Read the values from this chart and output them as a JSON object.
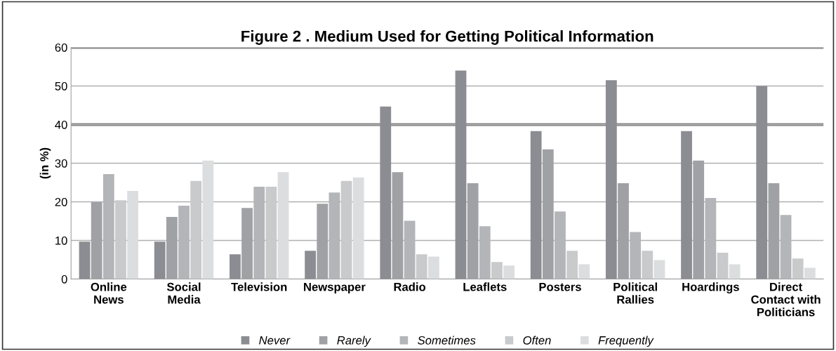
{
  "chart_data": {
    "type": "bar",
    "title": "Figure 2 . Medium Used for Getting Political Information",
    "ylabel": "(in %)",
    "categories": [
      "Online\nNews",
      "Social\nMedia",
      "Television",
      "Newspaper",
      "Radio",
      "Leaflets",
      "Posters",
      "Political\nRallies",
      "Hoardings",
      "Direct\nContact with\nPoliticians"
    ],
    "series": [
      {
        "name": "Never",
        "color": "#8c8d92",
        "values": [
          9.7,
          9.7,
          6.4,
          7.3,
          44.7,
          54.0,
          38.3,
          51.5,
          38.3,
          50.0
        ]
      },
      {
        "name": "Rarely",
        "color": "#a0a1a5",
        "values": [
          19.9,
          16.1,
          18.4,
          19.5,
          27.7,
          24.8,
          33.6,
          24.8,
          30.7,
          24.8
        ]
      },
      {
        "name": "Sometimes",
        "color": "#b4b5b9",
        "values": [
          27.2,
          19.0,
          23.9,
          22.4,
          15.1,
          13.7,
          17.5,
          12.2,
          21.0,
          16.6
        ]
      },
      {
        "name": "Often",
        "color": "#c9cacc",
        "values": [
          20.4,
          25.4,
          23.9,
          25.4,
          6.4,
          4.4,
          7.3,
          7.3,
          6.8,
          5.3
        ]
      },
      {
        "name": "Frequently",
        "color": "#dcdddf",
        "values": [
          22.8,
          30.7,
          27.7,
          26.3,
          5.8,
          3.5,
          3.8,
          4.9,
          3.8,
          2.9
        ]
      }
    ],
    "ylim": [
      0,
      60
    ],
    "yticks": [
      0,
      10,
      20,
      30,
      40,
      50,
      60
    ],
    "grid": "y",
    "legend": "bottom",
    "ref_lines": [
      {
        "axis": "y",
        "value": 40,
        "color": "#7f7f7f"
      },
      {
        "axis": "y",
        "value": 60,
        "color": "#7f7f7f"
      }
    ]
  }
}
